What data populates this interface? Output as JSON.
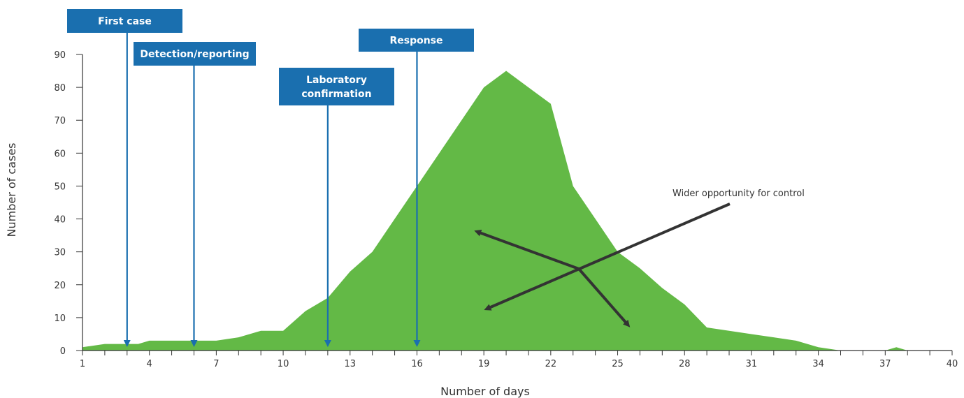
{
  "chart_data": {
    "type": "area",
    "xlabel": "Number of days",
    "ylabel": "Number of cases",
    "xlim": [
      1,
      40
    ],
    "ylim": [
      0,
      90
    ],
    "x_ticks": [
      1,
      4,
      7,
      10,
      13,
      16,
      19,
      22,
      25,
      28,
      31,
      34,
      37,
      40
    ],
    "y_ticks": [
      0,
      10,
      20,
      30,
      40,
      50,
      60,
      70,
      80,
      90
    ],
    "grid": false,
    "colors": {
      "area": "#63b946",
      "event": "#1a6faf",
      "annotation_arrow": "#333333"
    },
    "series": [
      {
        "x": [
          1,
          2,
          3,
          3.5,
          4,
          5,
          6,
          7,
          8,
          9,
          10,
          11,
          12,
          13,
          14,
          15,
          16,
          17,
          18,
          19,
          20,
          21,
          22,
          23,
          24,
          25,
          26,
          27,
          28,
          29,
          30,
          31,
          32,
          33,
          34,
          35,
          36,
          37,
          37.5,
          38,
          40
        ],
        "values": [
          1,
          2,
          2,
          2,
          3,
          3,
          3,
          3,
          4,
          6,
          6,
          12,
          16,
          24,
          30,
          40,
          50,
          60,
          70,
          80,
          85,
          80,
          75,
          50,
          40,
          30,
          25,
          19,
          14,
          7,
          6,
          5,
          4,
          3,
          1,
          0,
          0,
          0,
          1,
          0,
          0
        ]
      }
    ],
    "events": [
      {
        "label": "First case",
        "day": 3
      },
      {
        "label": "Detection/reporting",
        "day": 6
      },
      {
        "label": "Laboratory confirmation",
        "label_lines": [
          "Laboratory",
          "confirmation"
        ],
        "day": 12
      },
      {
        "label": "Response",
        "day": 16
      }
    ],
    "annotations": [
      {
        "text": "Wider opportunity for control"
      }
    ]
  }
}
